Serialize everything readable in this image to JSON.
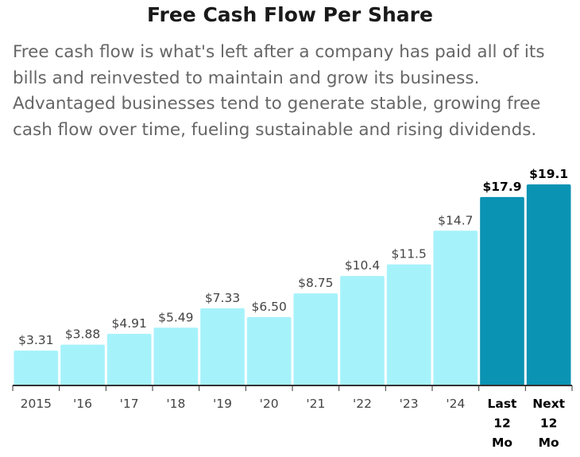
{
  "title": "Free Cash Flow Per Share",
  "description": "Free cash flow is what's left after a company has paid all of its bills and reinvested to maintain and grow its business. Advantaged businesses tend to generate stable, growing free cash flow over time, fueling sustainable and rising dividends.",
  "colors": {
    "historical": "#a6f2fb",
    "highlight": "#0b93b3",
    "axis": "#333333",
    "label": "#444444",
    "highlight_label": "#000000"
  },
  "chart_data": {
    "type": "bar",
    "title": "Free Cash Flow Per Share",
    "xlabel": "",
    "ylabel": "",
    "ylim": [
      0,
      19.1
    ],
    "categories": [
      "2015",
      "'16",
      "'17",
      "'18",
      "'19",
      "'20",
      "'21",
      "'22",
      "'23",
      "'24",
      "Last 12 Mo",
      "Next 12 Mo"
    ],
    "category_lines": [
      [
        "2015"
      ],
      [
        "'16"
      ],
      [
        "'17"
      ],
      [
        "'18"
      ],
      [
        "'19"
      ],
      [
        "'20"
      ],
      [
        "'21"
      ],
      [
        "'22"
      ],
      [
        "'23"
      ],
      [
        "'24"
      ],
      [
        "Last",
        "12",
        "Mo"
      ],
      [
        "Next",
        "12",
        "Mo"
      ]
    ],
    "values": [
      3.31,
      3.88,
      4.91,
      5.49,
      7.33,
      6.5,
      8.75,
      10.4,
      11.5,
      14.7,
      17.9,
      19.1
    ],
    "value_labels": [
      "$3.31",
      "$3.88",
      "$4.91",
      "$5.49",
      "$7.33",
      "$6.50",
      "$8.75",
      "$10.4",
      "$11.5",
      "$14.7",
      "$17.9",
      "$19.1"
    ],
    "highlighted": [
      false,
      false,
      false,
      false,
      false,
      false,
      false,
      false,
      false,
      false,
      true,
      true
    ]
  }
}
